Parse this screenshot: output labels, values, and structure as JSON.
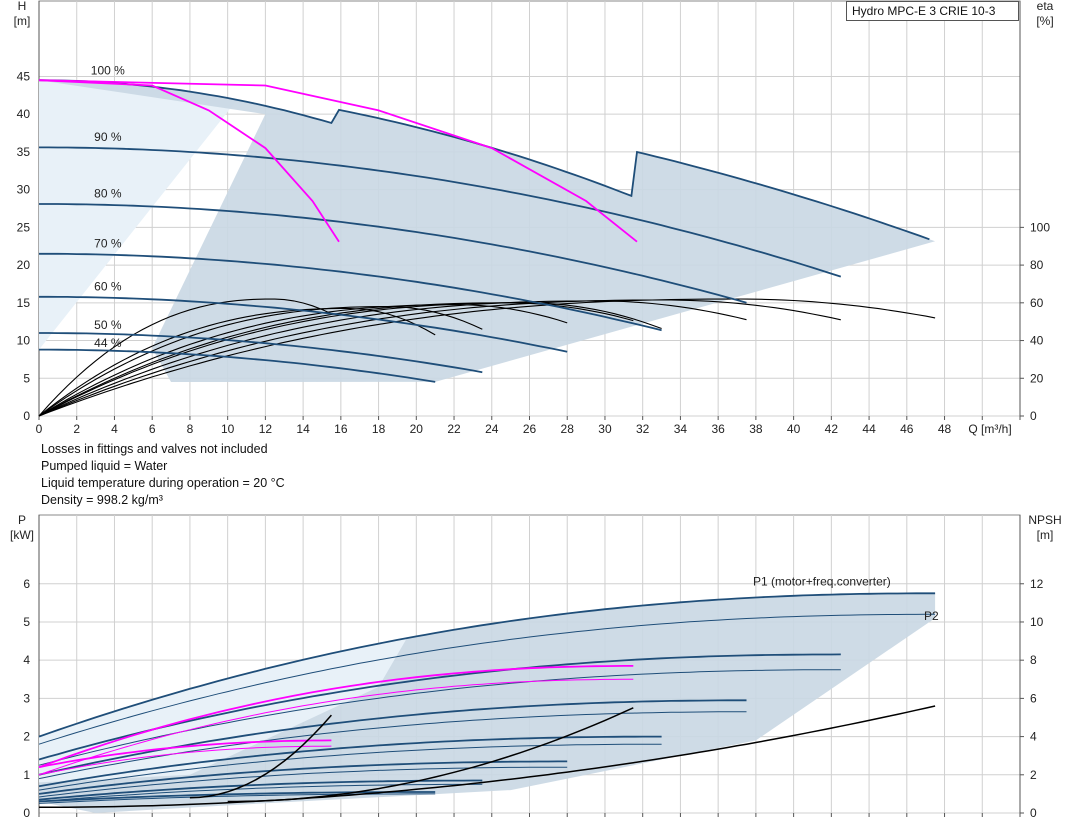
{
  "chart_title": "Hydro MPC-E 3 CRIE 10-3",
  "notes": [
    "Losses in fittings and valves not included",
    "Pumped liquid = Water",
    "Liquid temperature during operation = 20 °C",
    "Density = 998.2 kg/m³"
  ],
  "colors": {
    "curve": "#1f4e79",
    "efficiency": "#000000",
    "system": "#ff00ff",
    "area_dark": "#c9d7e3",
    "area_light": "#e8f1f8",
    "grid": "#d0d0d0"
  },
  "chart_data": [
    {
      "type": "line",
      "name": "pump-performance",
      "xlabel": "Q [m³/h]",
      "ylabel_left": [
        "H",
        "[m]"
      ],
      "ylabel_right": [
        "eta",
        "[%]"
      ],
      "xlim": [
        0,
        52
      ],
      "ylim": [
        0,
        55
      ],
      "xticks": [
        0,
        2,
        4,
        6,
        8,
        10,
        12,
        14,
        16,
        18,
        20,
        22,
        24,
        26,
        28,
        30,
        32,
        34,
        36,
        38,
        40,
        42,
        44,
        46,
        48
      ],
      "yticks": [
        0,
        5,
        10,
        15,
        20,
        25,
        30,
        35,
        40,
        45
      ],
      "y2ticks": [
        0,
        20,
        40,
        60,
        80,
        100
      ],
      "y2lim": [
        0,
        220
      ],
      "speed_labels": [
        {
          "text": "100 %",
          "q": 2.8,
          "h": 45.1
        },
        {
          "text": "90 %",
          "q": 2.8,
          "h": 36.3
        },
        {
          "text": "80 %",
          "q": 2.8,
          "h": 28.8
        },
        {
          "text": "70 %",
          "q": 2.8,
          "h": 22.2
        },
        {
          "text": "60 %",
          "q": 2.8,
          "h": 16.5
        },
        {
          "text": "50 %",
          "q": 2.8,
          "h": 11.4
        },
        {
          "text": "44 %",
          "q": 2.8,
          "h": 9.0
        }
      ],
      "head_curves": [
        {
          "speed": "100 %",
          "hmax": 44.5,
          "segments": [
            {
              "qmax": 15.9,
              "k": 0.0236
            },
            {
              "qmax": 31.7,
              "k": 0.01555
            },
            {
              "qmax": 47.5,
              "k": 0.00946
            }
          ]
        },
        {
          "speed": "90 %",
          "hmax": 35.6,
          "segments": [
            {
              "qmax": 42.5,
              "k": 0.00948
            }
          ]
        },
        {
          "speed": "80 %",
          "hmax": 28.1,
          "segments": [
            {
              "qmax": 37.9,
              "k": 0.0093
            }
          ]
        },
        {
          "speed": "70 %",
          "hmax": 21.5,
          "segments": [
            {
              "qmax": 33.1,
              "k": 0.0093
            }
          ]
        },
        {
          "speed": "60 %",
          "hmax": 15.8,
          "segments": [
            {
              "qmax": 28.4,
              "k": 0.0093
            }
          ]
        },
        {
          "speed": "50 %",
          "hmax": 11.0,
          "segments": [
            {
              "qmax": 23.7,
              "k": 0.0094
            }
          ]
        },
        {
          "speed": "44 %",
          "hmax": 8.8,
          "segments": [
            {
              "qmax": 21.0,
              "k": 0.0097
            }
          ]
        }
      ],
      "system_curves": [
        {
          "points": [
            [
              0,
              44.5
            ],
            [
              6,
              43.8
            ],
            [
              9,
              40.5
            ],
            [
              12,
              35.5
            ],
            [
              14.5,
              28.5
            ],
            [
              15.9,
              23.1
            ]
          ]
        },
        {
          "points": [
            [
              0,
              44.5
            ],
            [
              12,
              43.8
            ],
            [
              18,
              40.5
            ],
            [
              24,
              35.5
            ],
            [
              29,
              28.5
            ],
            [
              31.7,
              23.1
            ]
          ]
        }
      ],
      "efficiency_curves": [
        {
          "qmax": 47.5,
          "peak": 62,
          "eta_end": 52
        },
        {
          "qmax": 42.5,
          "peak": 61.5,
          "eta_end": 51
        },
        {
          "qmax": 37.9,
          "peak": 61,
          "eta_end": 50
        },
        {
          "qmax": 33.1,
          "peak": 60,
          "eta_end": 46
        },
        {
          "qmax": 28.4,
          "peak": 59,
          "eta_end": 48
        },
        {
          "qmax": 23.7,
          "peak": 58,
          "eta_end": 45
        },
        {
          "qmax": 21.0,
          "peak": 57,
          "eta_end": 43
        },
        {
          "qmax": 15.9,
          "peak": 62,
          "eta_end": 52
        },
        {
          "qmax": 31.7,
          "peak": 60,
          "eta_end": 50
        }
      ]
    },
    {
      "type": "line",
      "name": "power-npsh",
      "ylabel_left": [
        "P",
        "[kW]"
      ],
      "ylabel_right": [
        "NPSH",
        "[m]"
      ],
      "xlim": [
        0,
        52
      ],
      "ylim": [
        0,
        7.8
      ],
      "yticks": [
        0,
        1,
        2,
        3,
        4,
        5,
        6
      ],
      "y2ticks": [
        0,
        2,
        4,
        6,
        8,
        10,
        12
      ],
      "y2lim": [
        0,
        15.6
      ],
      "series_labels": [
        {
          "text": "P1 (motor+freq.converter)",
          "q": 41.5,
          "p": 5.95
        },
        {
          "text": "P2",
          "q": 47.3,
          "p": 5.05
        }
      ],
      "p1_curves": [
        {
          "qmax": 47.5,
          "p0": 2.0,
          "pend": 5.75
        },
        {
          "qmax": 42.5,
          "p0": 1.4,
          "pend": 4.15
        },
        {
          "qmax": 37.9,
          "p0": 1.0,
          "pend": 2.95
        },
        {
          "qmax": 33.1,
          "p0": 0.7,
          "pend": 2.0
        },
        {
          "qmax": 28.4,
          "p0": 0.5,
          "pend": 1.35
        },
        {
          "qmax": 23.7,
          "p0": 0.35,
          "pend": 0.85
        },
        {
          "qmax": 21.0,
          "p0": 0.3,
          "pend": 0.55
        }
      ],
      "p2_curves": [
        {
          "qmax": 47.5,
          "p0": 1.8,
          "pend": 5.2
        },
        {
          "qmax": 42.5,
          "p0": 1.25,
          "pend": 3.75
        },
        {
          "qmax": 37.9,
          "p0": 0.9,
          "pend": 2.65
        },
        {
          "qmax": 33.1,
          "p0": 0.6,
          "pend": 1.8
        },
        {
          "qmax": 28.4,
          "p0": 0.42,
          "pend": 1.2
        },
        {
          "qmax": 23.7,
          "p0": 0.3,
          "pend": 0.75
        },
        {
          "qmax": 21.0,
          "p0": 0.25,
          "pend": 0.5
        }
      ],
      "system_power": [
        {
          "qmax": 31.7,
          "p0": 1.2,
          "pend": 3.85
        },
        {
          "qmax": 31.7,
          "p0": 1.0,
          "pend": 3.5
        },
        {
          "qmax": 15.9,
          "p0": 1.2,
          "pend": 1.9
        },
        {
          "qmax": 15.9,
          "p0": 1.0,
          "pend": 1.75
        }
      ],
      "npsh_curves": [
        {
          "q0": 0,
          "n0": 0.3,
          "qmax": 47.5,
          "nend": 5.6
        },
        {
          "q0": 10,
          "n0": 0.6,
          "qmax": 31.7,
          "nend": 5.6
        },
        {
          "q0": 8,
          "n0": 0.8,
          "qmax": 15.9,
          "nend": 5.6
        }
      ]
    }
  ]
}
